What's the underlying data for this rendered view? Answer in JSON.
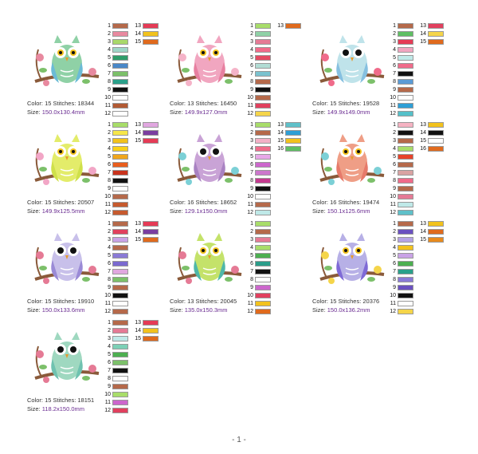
{
  "designs": [
    {
      "color_label": "Color: 15",
      "stitches_label": "Stitches: 18344",
      "size_label": "Size:",
      "size_value": "150.0x130.4mm",
      "swatches": [
        "#b5694a",
        "#e8899f",
        "#a9d86a",
        "#9fd6c8",
        "#2f9d6b",
        "#4a88c8",
        "#7cc06a",
        "#2aa08a",
        "#111111",
        "#ffffff",
        "#b25a34",
        "#ffffff",
        "#e53b56",
        "#f2c21d",
        "#e06a1d"
      ],
      "owl": {
        "body": "#8fd1a6",
        "wing": "#6bbbd6",
        "eye": "#f2c21d",
        "flower": "#e8899f"
      }
    },
    {
      "color_label": "Color: 13",
      "stitches_label": "Stitches: 16450",
      "size_label": "Size:",
      "size_value": "149.9x127.0mm",
      "swatches": [
        "#a8dd6a",
        "#8fd1a6",
        "#e57a95",
        "#f06b8a",
        "#e44b63",
        "#b1dcd4",
        "#7ac2cf",
        "#b5694a",
        "#111111",
        "#b5694a",
        "#e1405e",
        "#f5d54a",
        "#e06a1d"
      ],
      "owl": {
        "body": "#f1a6c0",
        "wing": "#e77fa0",
        "eye": "#f2c21d",
        "flower": "#f5b3c8"
      }
    },
    {
      "color_label": "Color: 15",
      "stitches_label": "Stitches: 19528",
      "size_label": "Size:",
      "size_value": "149.9x149.0mm",
      "swatches": [
        "#b5694a",
        "#5fbf63",
        "#e53b56",
        "#f1a6c0",
        "#bfe9e8",
        "#f06b8a",
        "#111111",
        "#5a9bd6",
        "#b5694a",
        "#ffffff",
        "#2e9fd6",
        "#55c0c9",
        "#e1405e",
        "#f5d54a",
        "#e06a1d"
      ],
      "owl": {
        "body": "#bfe3ea",
        "wing": "#86c0e0",
        "eye": "#111111",
        "flower": "#f06b8a"
      }
    },
    {
      "color_label": "Color: 15",
      "stitches_label": "Stitches: 20507",
      "size_label": "Size:",
      "size_value": "149.9x125.5mm",
      "swatches": [
        "#a8dd6a",
        "#f6e64a",
        "#f2c21d",
        "#f9d11a",
        "#f0a61d",
        "#e95e1d",
        "#c9331d",
        "#111111",
        "#ffffff",
        "#b5694a",
        "#c65a2e",
        "#c65a2e",
        "#e1a7e0",
        "#7a3ea0",
        "#e53b56"
      ],
      "owl": {
        "body": "#e3ec6a",
        "wing": "#cfe04a",
        "eye": "#f2c21d",
        "flower": "#f2a6c6"
      }
    },
    {
      "color_label": "Color: 16",
      "stitches_label": "Stitches: 18652",
      "size_label": "Size:",
      "size_value": "129.1x150.0mm",
      "swatches": [
        "#a8dd6a",
        "#b5694a",
        "#f3b0c6",
        "#f06b8a",
        "#e8a8e8",
        "#cc66cc",
        "#cc77cc",
        "#c43a8f",
        "#111111",
        "#ffffff",
        "#b5694a",
        "#bfe9e8",
        "#5fc0c9",
        "#2e9fd6",
        "#f2c21d",
        "#5fbf63"
      ],
      "owl": {
        "body": "#c9a3d6",
        "wing": "#a982c2",
        "eye": "#111111",
        "flower": "#7cd0d6"
      }
    },
    {
      "color_label": "Color: 16",
      "stitches_label": "Stitches: 19474",
      "size_label": "Size:",
      "size_value": "150.1x125.6mm",
      "swatches": [
        "#f5b3c2",
        "#111111",
        "#b5694a",
        "#a8dd6a",
        "#e7432a",
        "#b5694a",
        "#d9a3a3",
        "#f06b8a",
        "#b5694a",
        "#e57a95",
        "#bfe9e8",
        "#5fc0c9",
        "#f2c21d",
        "#111111",
        "#ffffff",
        "#e06a1d"
      ],
      "owl": {
        "body": "#ef9e86",
        "wing": "#e67a6a",
        "eye": "#f2c21d",
        "flower": "#7cd0d6"
      }
    },
    {
      "color_label": "Color: 15",
      "stitches_label": "Stitches: 19910",
      "size_label": "Size:",
      "size_value": "150.0x133.6mm",
      "swatches": [
        "#b5694a",
        "#e1405e",
        "#c9a3e6",
        "#b5694a",
        "#8a7ad6",
        "#7a6ad0",
        "#e1a7e0",
        "#7cc06a",
        "#b5694a",
        "#111111",
        "#ffffff",
        "#b5694a",
        "#e53b56",
        "#7a3ea0",
        "#e06a1d"
      ],
      "owl": {
        "body": "#c8c0ea",
        "wing": "#9a8ad6",
        "eye": "#111111",
        "flower": "#e57a95"
      }
    },
    {
      "color_label": "Color: 13",
      "stitches_label": "Stitches: 20045",
      "size_label": "Size:",
      "size_value": "135.0x150.3mm",
      "swatches": [
        "#a8dd6a",
        "#b5694a",
        "#e57a95",
        "#a8dd6a",
        "#4caf50",
        "#2a9d8a",
        "#111111",
        "#ffffff",
        "#cc66cc",
        "#e1405e",
        "#f2c21d",
        "#e06a1d"
      ],
      "owl": {
        "body": "#c4e26a",
        "wing": "#4fb7a8",
        "eye": "#f2c21d",
        "flower": "#e57a95"
      }
    },
    {
      "color_label": "Color: 15",
      "stitches_label": "Stitches: 20376",
      "size_label": "Size:",
      "size_value": "150.0x136.2mm",
      "swatches": [
        "#b5694a",
        "#6a50c0",
        "#b5a3e6",
        "#f2c21d",
        "#c9a3e6",
        "#4caf50",
        "#2aa08a",
        "#8a7ad6",
        "#6a50c0",
        "#111111",
        "#ffffff",
        "#f5d54a",
        "#f2c21d",
        "#e06a1d",
        "#e88a1d"
      ],
      "owl": {
        "body": "#b7b0e6",
        "wing": "#7f6ad6",
        "eye": "#f2c21d",
        "flower": "#f5d54a"
      }
    },
    {
      "color_label": "Color: 15",
      "stitches_label": "Stitches: 18151",
      "size_label": "Size:",
      "size_value": "118.2x150.0mm",
      "swatches": [
        "#b5694a",
        "#e57a95",
        "#bfe9e8",
        "#7cd0b6",
        "#4caf50",
        "#7cc06a",
        "#111111",
        "#ffffff",
        "#b5694a",
        "#a8dd6a",
        "#cc66cc",
        "#e1405e",
        "#e53b56",
        "#f2c21d",
        "#e06a1d"
      ],
      "owl": {
        "body": "#9fd8c0",
        "wing": "#6fc2b0",
        "eye": "#111111",
        "flower": "#e57a95"
      }
    }
  ],
  "footer": {
    "page_label": "- 1 -"
  }
}
